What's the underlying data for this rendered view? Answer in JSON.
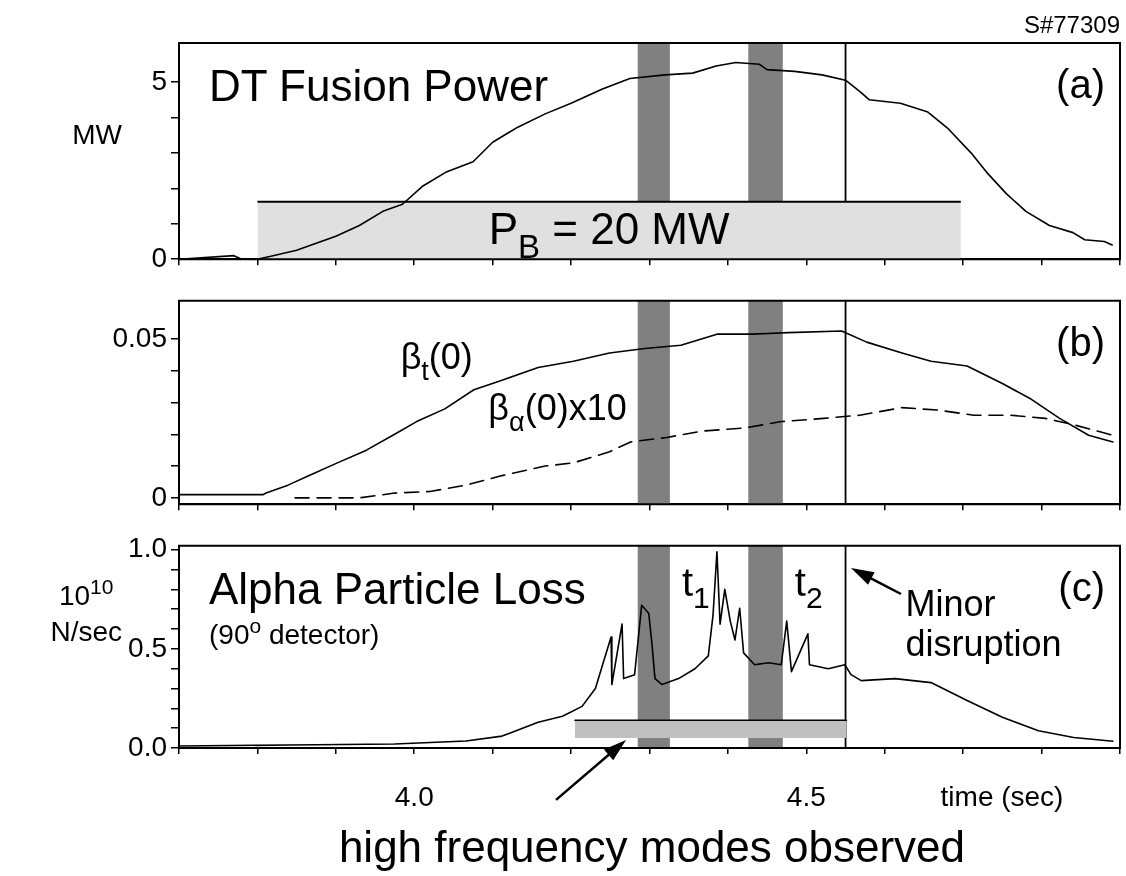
{
  "chart_data": [
    {
      "type": "line",
      "title": "DT Fusion Power",
      "ylabel": "MW",
      "annotations": [
        "(a)",
        "S#77309"
      ],
      "xlim": [
        3.7,
        4.9
      ],
      "ylim": [
        0,
        6.1
      ],
      "xticks": [
        3.7,
        3.8,
        3.9,
        4.0,
        4.1,
        4.2,
        4.3,
        4.4,
        4.5,
        4.6,
        4.7,
        4.8,
        4.9
      ],
      "yticks": [
        0,
        {
          "value": 1,
          "label": null
        },
        {
          "value": 2,
          "label": null
        },
        {
          "value": 3,
          "label": null
        },
        {
          "value": 4,
          "label": null
        },
        5
      ],
      "tick_labels": "y",
      "marker": "none",
      "bands": [
        {
          "axis": "x",
          "from": 4.285,
          "to": 4.326,
          "color": "#808080"
        },
        {
          "axis": "x",
          "from": 4.426,
          "to": 4.47,
          "color": "#808080"
        }
      ],
      "ref_lines": [
        {
          "axis": "x",
          "value": 4.55,
          "color": "#000000"
        }
      ],
      "series": [
        {
          "type": "area",
          "name": "P$_{B}$ = 20 MW",
          "color": "#e0e0e0",
          "x": [
            3.8,
            4.697
          ],
          "values": [
            1.62,
            1.62
          ]
        },
        {
          "type": "line",
          "color": "#000000",
          "x": [
            3.7,
            3.77,
            3.78,
            3.8,
            3.82,
            3.85,
            3.875,
            3.9,
            3.93,
            3.96,
            3.985,
            4.01,
            4.04,
            4.075,
            4.1,
            4.13,
            4.167,
            4.2,
            4.24,
            4.275,
            4.32,
            4.355,
            4.385,
            4.41,
            4.44,
            4.45,
            4.485,
            4.52,
            4.55,
            4.57,
            4.58,
            4.62,
            4.655,
            4.68,
            4.71,
            4.73,
            4.755,
            4.78,
            4.81,
            4.84,
            4.855,
            4.88,
            4.89
          ],
          "values": [
            0,
            0.1,
            0,
            0,
            0.1,
            0.25,
            0.45,
            0.65,
            0.95,
            1.35,
            1.55,
            2.05,
            2.45,
            2.75,
            3.3,
            3.7,
            4.1,
            4.4,
            4.8,
            5.1,
            5.2,
            5.25,
            5.45,
            5.55,
            5.5,
            5.35,
            5.3,
            5.2,
            5.05,
            4.7,
            4.5,
            4.4,
            4.15,
            3.7,
            3.0,
            2.45,
            1.85,
            1.35,
            0.95,
            0.75,
            0.55,
            0.5,
            0.4
          ]
        }
      ]
    },
    {
      "type": "line",
      "annotations": [
        "(b)"
      ],
      "xlim": [
        3.7,
        4.9
      ],
      "ylim": [
        -0.002,
        0.062
      ],
      "xticks": [
        3.7,
        3.8,
        3.9,
        4.0,
        4.1,
        4.2,
        4.3,
        4.4,
        4.5,
        4.6,
        4.7,
        4.8,
        4.9
      ],
      "yticks": [
        0,
        {
          "value": 0.01,
          "label": null
        },
        {
          "value": 0.02,
          "label": null
        },
        {
          "value": 0.03,
          "label": null
        },
        {
          "value": 0.04,
          "label": null
        },
        0.05
      ],
      "tick_labels": "y",
      "marker": "none",
      "bands": [
        {
          "axis": "x",
          "from": 4.285,
          "to": 4.326,
          "color": "#808080"
        },
        {
          "axis": "x",
          "from": 4.426,
          "to": 4.47,
          "color": "#808080"
        }
      ],
      "ref_lines": [
        {
          "axis": "x",
          "value": 4.55,
          "color": "#000000"
        }
      ],
      "series": [
        {
          "type": "line",
          "name": "β$_{t}$(0)",
          "color": "#000000",
          "line_style": "solid",
          "x": [
            3.7,
            3.807,
            3.811,
            3.839,
            3.866,
            3.902,
            3.939,
            3.975,
            4.003,
            4.039,
            4.076,
            4.112,
            4.158,
            4.203,
            4.249,
            4.294,
            4.34,
            4.386,
            4.431,
            4.477,
            4.545,
            4.577,
            4.622,
            4.659,
            4.705,
            4.75,
            4.787,
            4.823,
            4.86,
            4.891
          ],
          "values": [
            0.001,
            0.001,
            0.0015,
            0.004,
            0.007,
            0.011,
            0.015,
            0.02,
            0.024,
            0.028,
            0.034,
            0.037,
            0.041,
            0.043,
            0.0456,
            0.047,
            0.048,
            0.0515,
            0.0515,
            0.052,
            0.0525,
            0.049,
            0.0456,
            0.043,
            0.0415,
            0.036,
            0.031,
            0.025,
            0.0197,
            0.0176
          ]
        },
        {
          "type": "line",
          "name": "β$_{α}$(0)x10",
          "color": "#000000",
          "line_style": "dashed",
          "x": [
            3.848,
            3.93,
            3.975,
            4.02,
            4.066,
            4.112,
            4.167,
            4.203,
            4.249,
            4.276,
            4.322,
            4.367,
            4.422,
            4.468,
            4.522,
            4.568,
            4.622,
            4.668,
            4.714,
            4.76,
            4.805,
            4.841,
            4.891
          ],
          "values": [
            0,
            0,
            0.0015,
            0.002,
            0.004,
            0.007,
            0.01,
            0.011,
            0.0145,
            0.0176,
            0.019,
            0.021,
            0.022,
            0.024,
            0.025,
            0.026,
            0.0284,
            0.0276,
            0.026,
            0.026,
            0.025,
            0.023,
            0.0197
          ]
        }
      ]
    },
    {
      "type": "line",
      "title": "Alpha Particle Loss",
      "subtitle": "(90$^{o}$ detector)",
      "ylabel": "10$^{10}$ N/sec",
      "xlabel": "time (sec)",
      "annotations": [
        "(c)",
        {
          "text": "high frequency modes observed",
          "x": 4.27,
          "y": 0.05
        }
      ],
      "xlim": [
        3.7,
        4.9
      ],
      "ylim": [
        0,
        1.02
      ],
      "xticks": [
        {
          "value": 3.7,
          "label": null
        },
        {
          "value": 3.8,
          "label": null
        },
        {
          "value": 3.9,
          "label": null
        },
        {
          "value": 4.0,
          "label": "4.0"
        },
        {
          "value": 4.1,
          "label": null
        },
        {
          "value": 4.2,
          "label": null
        },
        {
          "value": 4.3,
          "label": null
        },
        {
          "value": 4.4,
          "label": null
        },
        {
          "value": 4.5,
          "label": "4.5"
        },
        {
          "value": 4.6,
          "label": null
        },
        {
          "value": 4.7,
          "label": null
        },
        {
          "value": 4.8,
          "label": null
        },
        {
          "value": 4.9,
          "label": null
        }
      ],
      "yticks": [
        {
          "value": 0,
          "label": "0.0"
        },
        {
          "value": 0.1,
          "label": null
        },
        {
          "value": 0.2,
          "label": null
        },
        {
          "value": 0.3,
          "label": null
        },
        {
          "value": 0.4,
          "label": null
        },
        0.5,
        {
          "value": 0.6,
          "label": null
        },
        {
          "value": 0.7,
          "label": null
        },
        {
          "value": 0.8,
          "label": null
        },
        {
          "value": 0.9,
          "label": null
        },
        {
          "value": 1,
          "label": "1.0"
        }
      ],
      "marker": "none",
      "bands": [
        {
          "axis": "x",
          "from": 4.285,
          "to": 4.326,
          "color": "#808080",
          "label": "t$_{1}$"
        },
        {
          "axis": "x",
          "from": 4.426,
          "to": 4.47,
          "color": "#808080",
          "label": "t$_{2}$"
        }
      ],
      "ref_lines": [
        {
          "axis": "x",
          "value": 4.55,
          "color": "#000000",
          "label": "Minor disruption"
        }
      ],
      "series": [
        {
          "type": "line",
          "color": "#000000",
          "x": [
            4.205,
            4.551
          ],
          "values": [
            0.14,
            0.14
          ],
          "lower": [
            0.05,
            0.05
          ],
          "upper": [
            0.14,
            0.14
          ]
        },
        {
          "type": "line",
          "color": "#000000",
          "x": [
            3.7,
            3.84,
            3.975,
            4.066,
            4.112,
            4.158,
            4.189,
            4.214,
            4.231,
            4.251,
            4.252,
            4.265,
            4.267,
            4.281,
            4.29,
            4.299,
            4.303,
            4.307,
            4.316,
            4.337,
            4.358,
            4.375,
            4.381,
            4.386,
            4.39,
            4.396,
            4.403,
            4.409,
            4.415,
            4.42,
            4.434,
            4.452,
            4.468,
            4.475,
            4.481,
            4.502,
            4.504,
            4.528,
            4.549,
            4.557,
            4.57,
            4.613,
            4.659,
            4.705,
            4.75,
            4.796,
            4.841,
            4.891
          ],
          "values": [
            0.01,
            0.015,
            0.02,
            0.035,
            0.06,
            0.13,
            0.16,
            0.21,
            0.3,
            0.56,
            0.32,
            0.625,
            0.35,
            0.37,
            0.72,
            0.68,
            0.53,
            0.35,
            0.32,
            0.35,
            0.4,
            0.465,
            0.67,
            0.99,
            0.625,
            0.8,
            0.64,
            0.545,
            0.705,
            0.48,
            0.42,
            0.43,
            0.42,
            0.64,
            0.385,
            0.576,
            0.42,
            0.4,
            0.42,
            0.37,
            0.34,
            0.35,
            0.33,
            0.24,
            0.155,
            0.087,
            0.053,
            0.034
          ]
        }
      ]
    }
  ]
}
